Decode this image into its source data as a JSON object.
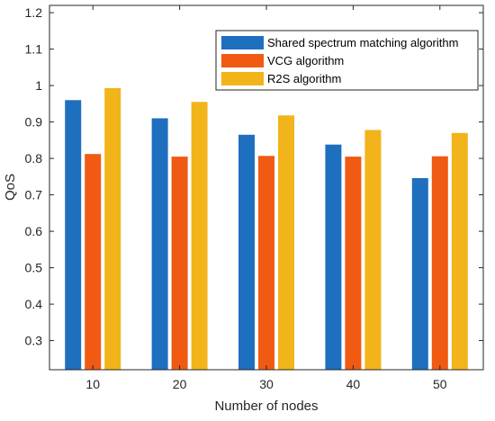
{
  "chart_data": {
    "type": "bar",
    "xlabel": "Number of nodes",
    "ylabel": "QoS",
    "categories": [
      "10",
      "20",
      "30",
      "40",
      "50"
    ],
    "ylim": [
      0.22,
      1.22
    ],
    "yticks": [
      0.3,
      0.4,
      0.5,
      0.6,
      0.7,
      0.8,
      0.9,
      1,
      1.1,
      1.2
    ],
    "ytick_labels": [
      "0.3",
      "0.4",
      "0.5",
      "0.6",
      "0.7",
      "0.8",
      "0.9",
      "1",
      "1.1",
      "1.2"
    ],
    "grid": false,
    "legend_position": "top-right",
    "series": [
      {
        "name": "Shared spectrum matching algorithm",
        "color": "#1f6fbf",
        "values": [
          0.96,
          0.91,
          0.865,
          0.838,
          0.746
        ]
      },
      {
        "name": "VCG algorithm",
        "color": "#f05a13",
        "values": [
          0.812,
          0.805,
          0.807,
          0.805,
          0.806
        ]
      },
      {
        "name": "R2S algorithm",
        "color": "#f2b41b",
        "values": [
          0.993,
          0.955,
          0.918,
          0.878,
          0.87
        ]
      }
    ]
  }
}
